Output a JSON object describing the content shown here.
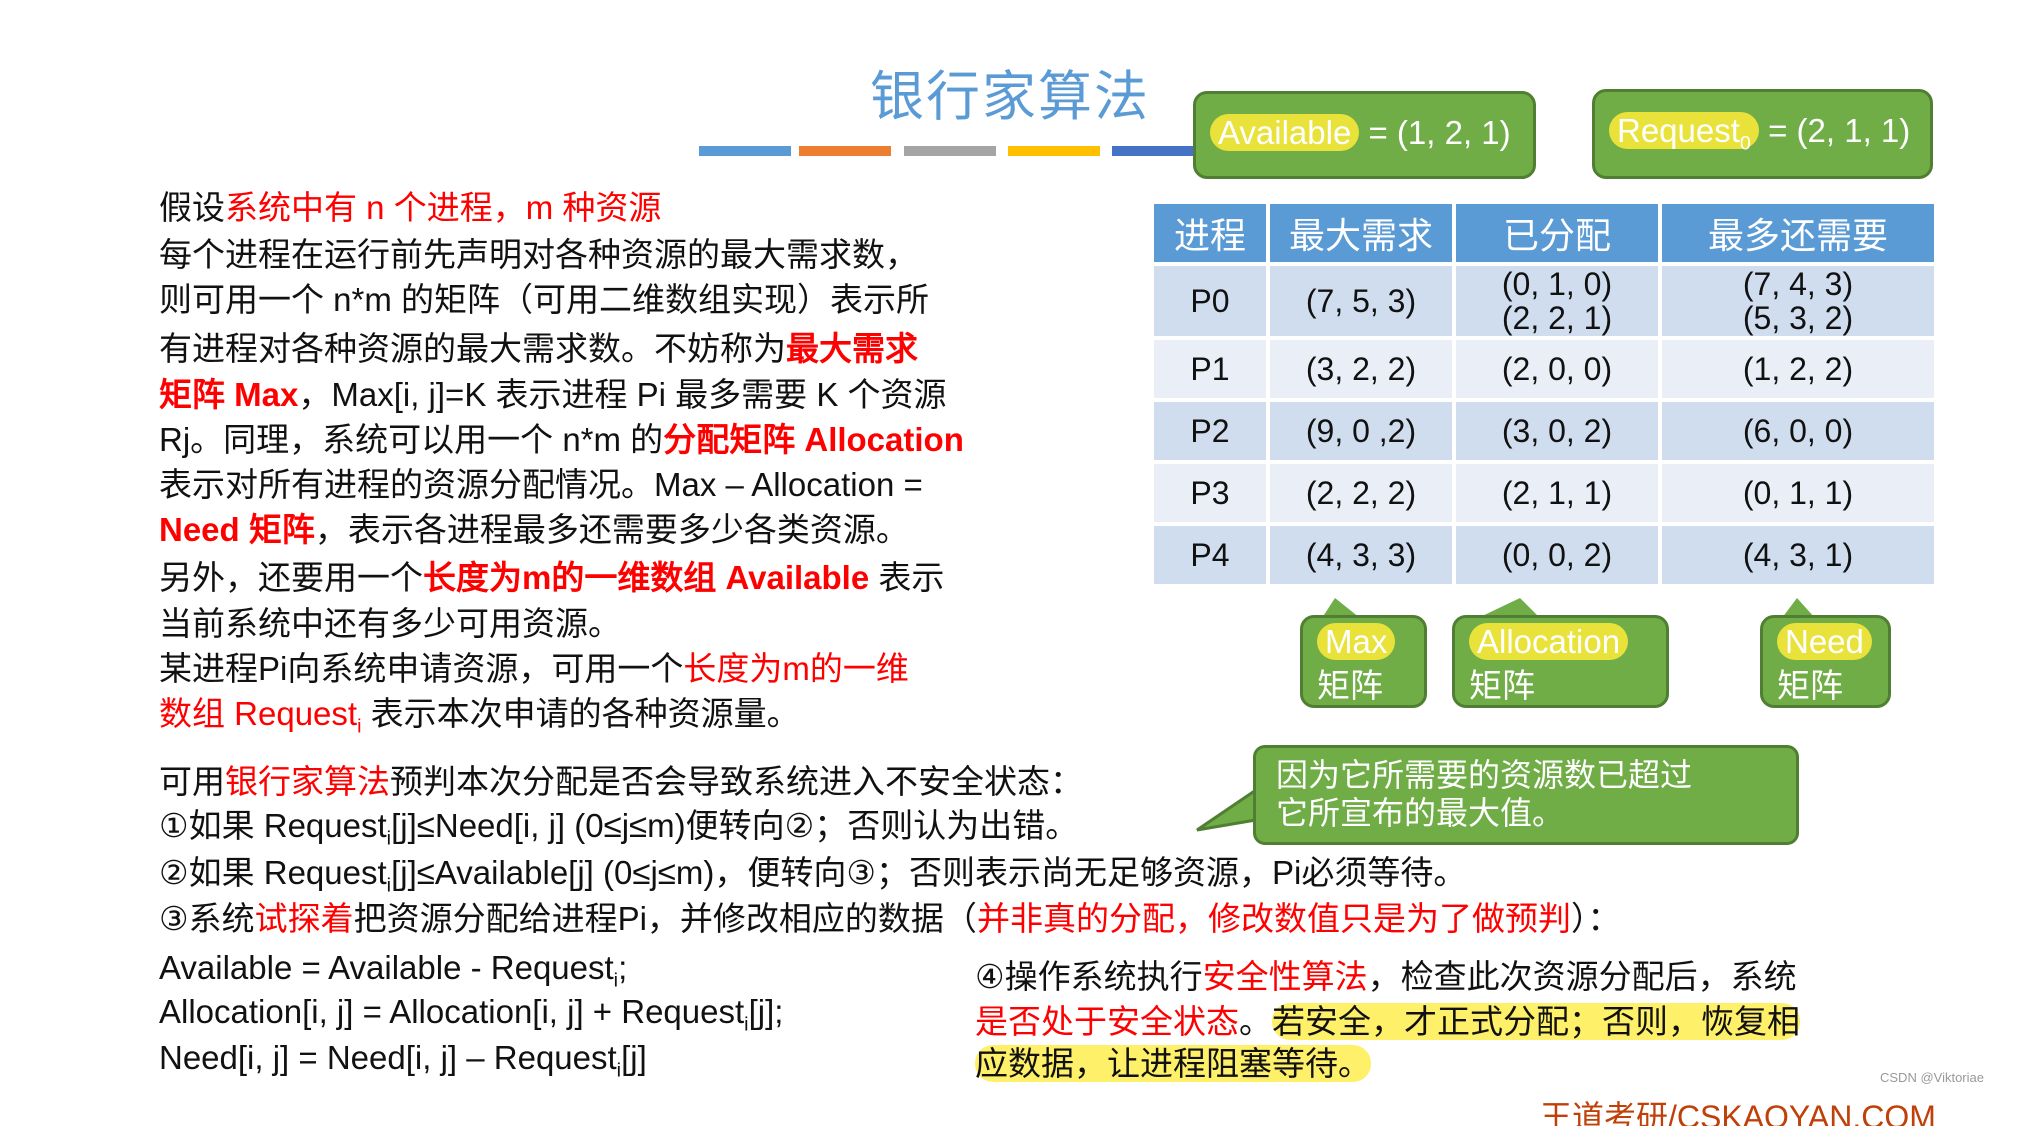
{
  "title": "银行家算法",
  "accent_colors": [
    "#5b9bd5",
    "#ed7d31",
    "#a5a5a5",
    "#ffc000",
    "#4472c4"
  ],
  "available": {
    "label": "Available",
    "value": " = (1, 2, 1)"
  },
  "request": {
    "label": "Request",
    "sub": "0",
    "value": " = (2, 1, 1)"
  },
  "table": {
    "headers": [
      "进程",
      "最大需求",
      "已分配",
      "最多还需要"
    ],
    "rows": [
      {
        "p": "P0",
        "max": "(7, 5, 3)",
        "alloc": "(0, 1, 0)",
        "alloc_overlay": "(2, 2, 1)",
        "need": "(7, 4, 3)",
        "need_overlay": "(5, 3, 2)"
      },
      {
        "p": "P1",
        "max": "(3, 2, 2)",
        "alloc": "(2, 0, 0)",
        "need": "(1, 2, 2)"
      },
      {
        "p": "P2",
        "max": "(9, 0 ,2)",
        "alloc": "(3, 0, 2)",
        "need": "(6, 0, 0)"
      },
      {
        "p": "P3",
        "max": "(2, 2, 2)",
        "alloc": "(2, 1, 1)",
        "need": "(0, 1, 1)"
      },
      {
        "p": "P4",
        "max": "(4, 3, 3)",
        "alloc": "(0, 0, 2)",
        "need": "(4, 3, 1)"
      }
    ]
  },
  "labels": {
    "max": {
      "top": "Max",
      "bottom": "矩阵"
    },
    "alloc": {
      "top": "Allocation",
      "bottom": "矩阵"
    },
    "need": {
      "top": "Need",
      "bottom": "矩阵"
    }
  },
  "callout": [
    "因为它所需要的资源数已超过",
    "它所宣布的最大值。"
  ],
  "left_lines": [
    [
      {
        "t": "假设"
      },
      {
        "t": "系统中有 n 个进程，m 种资源",
        "c": "r"
      }
    ],
    [
      {
        "t": "每个进程在运行前先声明对各种资源的最大需求数，"
      }
    ],
    [
      {
        "t": "则可用一个 n*m 的矩阵（可用二维数组实现）表示所"
      }
    ],
    [
      {
        "t": "有进程对各种资源的最大需求数。不妨称为"
      },
      {
        "t": "最大需求",
        "c": "rb"
      }
    ],
    [
      {
        "t": "矩阵 Max",
        "c": "rb"
      },
      {
        "t": "，Max[i, j]=K 表示进程 Pi 最多需要 K 个资源"
      }
    ],
    [
      {
        "t": "Rj。同理，系统可以用一个 n*m 的"
      },
      {
        "t": "分配矩阵 Allocation",
        "c": "rb"
      }
    ],
    [
      {
        "t": "表示对所有进程的资源分配情况。Max – Allocation ="
      }
    ],
    [
      {
        "t": "Need 矩阵",
        "c": "rb"
      },
      {
        "t": "，表示各进程最多还需要多少各类资源。"
      }
    ],
    [
      {
        "t": "另外，还要用一个"
      },
      {
        "t": "长度为m的一维数组 Available",
        "c": "rb"
      },
      {
        "t": " 表示"
      }
    ],
    [
      {
        "t": "当前系统中还有多少可用资源。"
      }
    ],
    [
      {
        "t": "某进程Pi向系统申请资源，可用一个"
      },
      {
        "t": "长度为m的一维",
        "c": "r"
      }
    ],
    [
      {
        "t": "数组 Request",
        "c": "r"
      },
      {
        "t": "i",
        "c": "r",
        "sub": true
      },
      {
        "t": " 表示本次申请的各种资源量。"
      }
    ]
  ],
  "lower_lines": [
    [
      {
        "t": "可用"
      },
      {
        "t": "银行家算法",
        "c": "r"
      },
      {
        "t": "预判本次分配是否会导致系统进入不安全状态："
      }
    ],
    [
      {
        "t": "①如果 Request"
      },
      {
        "t": "i",
        "sub": true
      },
      {
        "t": "[j]≤Need[i, j] (0≤j≤m)便转向②；否则认为出错。"
      }
    ],
    [
      {
        "t": "②如果 Request"
      },
      {
        "t": "i",
        "sub": true
      },
      {
        "t": "[j]≤Available[j] (0≤j≤m)，便转向③；否则表示尚无足够资源，Pi必须等待。"
      }
    ],
    [
      {
        "t": "③系统"
      },
      {
        "t": "试探着",
        "c": "r"
      },
      {
        "t": "把资源分配给进程Pi，并修改相应的数据（"
      },
      {
        "t": "并非真的分配，修改数值只是为了做预判",
        "c": "r"
      },
      {
        "t": "）："
      }
    ],
    [
      {
        "t": "Available = Available - Request"
      },
      {
        "t": "i",
        "sub": true
      },
      {
        "t": ";"
      }
    ],
    [
      {
        "t": "Allocation[i, j] = Allocation[i, j] + Request"
      },
      {
        "t": "i",
        "sub": true
      },
      {
        "t": "[j];"
      }
    ],
    [
      {
        "t": "Need[i, j] = Need[i, j] – Request"
      },
      {
        "t": "i",
        "sub": true
      },
      {
        "t": "[j]"
      }
    ]
  ],
  "right_lines": [
    [
      {
        "t": "④操作系统执行"
      },
      {
        "t": "安全性算法",
        "c": "r"
      },
      {
        "t": "，检查此次资源分配后，系统"
      }
    ],
    [
      {
        "t": "是否处于安全状态",
        "c": "r"
      },
      {
        "t": "。"
      },
      {
        "t": "若安全，才正式分配；否则，恢复相",
        "c": "hl"
      }
    ],
    [
      {
        "t": "应数据，让进程阻塞等待。",
        "c": "hl"
      }
    ]
  ],
  "footer": "王道考研/CSKAOYAN.COM",
  "watermark": "CSDN @Viktoriae"
}
